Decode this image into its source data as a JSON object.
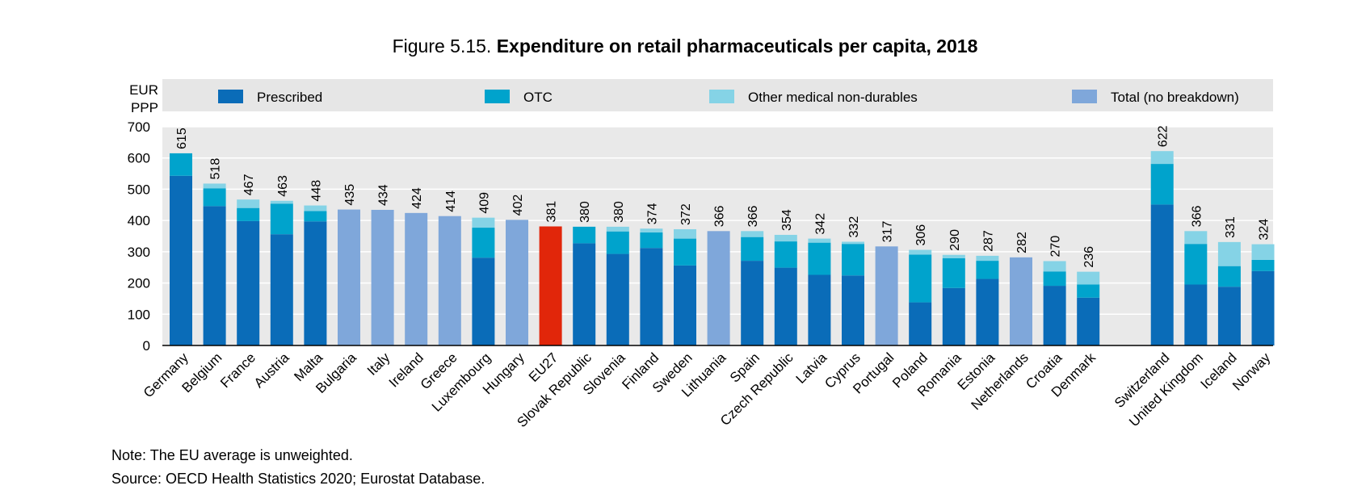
{
  "figure": {
    "number": "Figure 5.15.",
    "title": "Expenditure on retail pharmaceuticals per capita, 2018"
  },
  "notes": {
    "note": "Note: The EU average is unweighted.",
    "source": "Source: OECD Health Statistics 2020; Eurostat Database."
  },
  "colors": {
    "prescribed": "#0a6cb8",
    "otc": "#00a3cc",
    "other": "#85d3e6",
    "total": "#7fa7da",
    "eu27": "#e1260a",
    "plot_bg": "#e9e9e9",
    "legend_bg": "#e6e6e6"
  },
  "chart_data": {
    "type": "bar",
    "stacked": true,
    "title": "Expenditure on retail pharmaceuticals per capita, 2018",
    "ylabel": [
      "EUR",
      "PPP"
    ],
    "ylim": [
      0,
      700
    ],
    "yticks": [
      0,
      100,
      200,
      300,
      400,
      500,
      600,
      700
    ],
    "grid": true,
    "legend_position": "top",
    "series": [
      {
        "key": "prescribed",
        "name": "Prescribed"
      },
      {
        "key": "otc",
        "name": "OTC"
      },
      {
        "key": "other",
        "name": "Other medical non-durables"
      },
      {
        "key": "total",
        "name": "Total (no breakdown)"
      }
    ],
    "groups": [
      {
        "categories": [
          {
            "name": "Germany",
            "total": 615,
            "prescribed": 543,
            "otc": 72,
            "other": 0
          },
          {
            "name": "Belgium",
            "total": 518,
            "prescribed": 446,
            "otc": 57,
            "other": 15
          },
          {
            "name": "France",
            "total": 467,
            "prescribed": 398,
            "otc": 42,
            "other": 27
          },
          {
            "name": "Austria",
            "total": 463,
            "prescribed": 356,
            "otc": 98,
            "other": 9
          },
          {
            "name": "Malta",
            "total": 448,
            "prescribed": 397,
            "otc": 33,
            "other": 18
          },
          {
            "name": "Bulgaria",
            "total": 435,
            "no_breakdown": true
          },
          {
            "name": "Italy",
            "total": 434,
            "no_breakdown": true
          },
          {
            "name": "Ireland",
            "total": 424,
            "no_breakdown": true
          },
          {
            "name": "Greece",
            "total": 414,
            "no_breakdown": true
          },
          {
            "name": "Luxembourg",
            "total": 409,
            "prescribed": 281,
            "otc": 96,
            "other": 32
          },
          {
            "name": "Hungary",
            "total": 402,
            "no_breakdown": true
          },
          {
            "name": "EU27",
            "total": 381,
            "highlight": true
          },
          {
            "name": "Slovak Republic",
            "total": 380,
            "prescribed": 327,
            "otc": 53,
            "other": 0
          },
          {
            "name": "Slovenia",
            "total": 380,
            "prescribed": 293,
            "otc": 72,
            "other": 15
          },
          {
            "name": "Finland",
            "total": 374,
            "prescribed": 312,
            "otc": 50,
            "other": 12
          },
          {
            "name": "Sweden",
            "total": 372,
            "prescribed": 256,
            "otc": 86,
            "other": 30
          },
          {
            "name": "Lithuania",
            "total": 366,
            "no_breakdown": true
          },
          {
            "name": "Spain",
            "total": 366,
            "prescribed": 271,
            "otc": 76,
            "other": 19
          },
          {
            "name": "Czech Republic",
            "total": 354,
            "prescribed": 249,
            "otc": 84,
            "other": 21
          },
          {
            "name": "Latvia",
            "total": 342,
            "prescribed": 226,
            "otc": 103,
            "other": 13
          },
          {
            "name": "Cyprus",
            "total": 332,
            "prescribed": 224,
            "otc": 101,
            "other": 7
          },
          {
            "name": "Portugal",
            "total": 317,
            "no_breakdown": true
          },
          {
            "name": "Poland",
            "total": 306,
            "prescribed": 138,
            "otc": 153,
            "other": 15
          },
          {
            "name": "Romania",
            "total": 290,
            "prescribed": 184,
            "otc": 95,
            "other": 11
          },
          {
            "name": "Estonia",
            "total": 287,
            "prescribed": 213,
            "otc": 58,
            "other": 16
          },
          {
            "name": "Netherlands",
            "total": 282,
            "no_breakdown": true
          },
          {
            "name": "Croatia",
            "total": 270,
            "prescribed": 191,
            "otc": 46,
            "other": 33
          },
          {
            "name": "Denmark",
            "total": 236,
            "prescribed": 153,
            "otc": 42,
            "other": 41
          }
        ]
      },
      {
        "categories": [
          {
            "name": "Switzerland",
            "total": 622,
            "prescribed": 451,
            "otc": 130,
            "other": 41
          },
          {
            "name": "United Kingdom",
            "total": 366,
            "prescribed": 195,
            "otc": 130,
            "other": 41
          },
          {
            "name": "Iceland",
            "total": 331,
            "prescribed": 188,
            "otc": 66,
            "other": 77
          },
          {
            "name": "Norway",
            "total": 324,
            "prescribed": 238,
            "otc": 36,
            "other": 50
          }
        ]
      }
    ]
  }
}
